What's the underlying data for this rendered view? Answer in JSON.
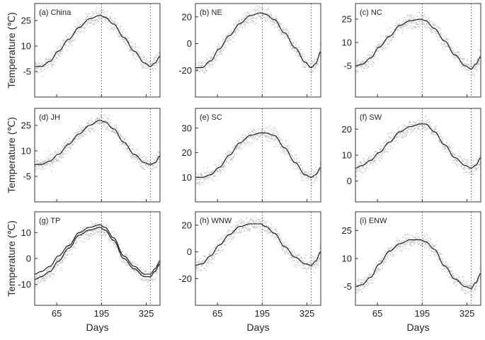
{
  "figure": {
    "ylabel": "Temperature (℃)",
    "xlabel": "Days"
  },
  "chart_data": [
    {
      "type": "line",
      "title": "(a) China",
      "x_ticks": [
        65,
        195,
        325
      ],
      "xlim": [
        1,
        365
      ],
      "yticks": [
        -5,
        10,
        25
      ],
      "ylim": [
        -20,
        35
      ],
      "vlines": [
        195,
        337
      ],
      "xlabel": "",
      "ylabel": "Temperature (℃)",
      "series": [
        {
          "x": [
            1,
            20,
            45,
            70,
            100,
            130,
            160,
            190,
            205,
            230,
            260,
            290,
            320,
            337,
            350,
            365
          ],
          "values": [
            -2,
            -2,
            1,
            7,
            14,
            21,
            26,
            28,
            27,
            23,
            15,
            7,
            0,
            -2,
            0,
            4
          ]
        }
      ]
    },
    {
      "type": "line",
      "title": "(b) NE",
      "x_ticks": [
        65,
        195,
        325
      ],
      "xlim": [
        1,
        365
      ],
      "yticks": [
        -20,
        0,
        20
      ],
      "ylim": [
        -40,
        30
      ],
      "vlines": [
        195,
        337
      ],
      "xlabel": "",
      "ylabel": "",
      "series": [
        {
          "x": [
            1,
            20,
            45,
            70,
            100,
            130,
            160,
            190,
            205,
            230,
            260,
            290,
            320,
            337,
            350,
            365
          ],
          "values": [
            -18,
            -18,
            -13,
            -4,
            6,
            15,
            21,
            23,
            22,
            18,
            8,
            -3,
            -14,
            -18,
            -15,
            -6
          ]
        }
      ]
    },
    {
      "type": "line",
      "title": "(c) NC",
      "x_ticks": [
        65,
        195,
        325
      ],
      "xlim": [
        1,
        365
      ],
      "yticks": [
        -5,
        10,
        25
      ],
      "ylim": [
        -25,
        35
      ],
      "vlines": [
        195,
        337
      ],
      "xlabel": "",
      "ylabel": "",
      "series": [
        {
          "x": [
            1,
            20,
            45,
            70,
            100,
            130,
            160,
            190,
            205,
            230,
            260,
            290,
            320,
            337,
            350,
            365
          ],
          "values": [
            -5,
            -4,
            0,
            7,
            14,
            21,
            24,
            25,
            24,
            19,
            11,
            2,
            -5,
            -7,
            -4,
            1
          ]
        }
      ]
    },
    {
      "type": "line",
      "title": "(d) JH",
      "x_ticks": [
        65,
        195,
        325
      ],
      "xlim": [
        1,
        365
      ],
      "yticks": [
        -5,
        10,
        25
      ],
      "ylim": [
        -20,
        35
      ],
      "vlines": [
        195,
        337
      ],
      "xlabel": "",
      "ylabel": "Temperature (℃)",
      "series": [
        {
          "x": [
            1,
            20,
            45,
            70,
            100,
            130,
            160,
            190,
            205,
            230,
            260,
            290,
            320,
            337,
            350,
            365
          ],
          "values": [
            2,
            2,
            4,
            8,
            14,
            20,
            25,
            28,
            27,
            23,
            15,
            8,
            3,
            2,
            3,
            7
          ]
        }
      ]
    },
    {
      "type": "line",
      "title": "(e) SC",
      "x_ticks": [
        65,
        195,
        325
      ],
      "xlim": [
        1,
        365
      ],
      "yticks": [
        10,
        20,
        30
      ],
      "ylim": [
        0,
        38
      ],
      "vlines": [
        195,
        337
      ],
      "xlabel": "",
      "ylabel": "",
      "series": [
        {
          "x": [
            1,
            20,
            45,
            70,
            100,
            130,
            160,
            190,
            205,
            230,
            260,
            290,
            320,
            337,
            350,
            365
          ],
          "values": [
            10,
            10,
            11,
            14,
            19,
            24,
            27,
            28,
            28,
            27,
            22,
            16,
            11,
            10,
            11,
            14
          ]
        }
      ]
    },
    {
      "type": "line",
      "title": "(f) SW",
      "x_ticks": [
        65,
        195,
        325
      ],
      "xlim": [
        1,
        365
      ],
      "yticks": [
        0,
        10,
        20
      ],
      "ylim": [
        -8,
        28
      ],
      "vlines": [
        195,
        337
      ],
      "xlabel": "",
      "ylabel": "",
      "series": [
        {
          "x": [
            1,
            20,
            45,
            70,
            100,
            130,
            160,
            190,
            205,
            230,
            260,
            290,
            320,
            337,
            350,
            365
          ],
          "values": [
            5,
            6,
            8,
            11,
            15,
            19,
            21,
            22,
            22,
            19,
            14,
            9,
            6,
            5,
            6,
            9
          ]
        }
      ]
    },
    {
      "type": "line",
      "title": "(g) TP",
      "x_ticks": [
        65,
        195,
        325
      ],
      "xlim": [
        1,
        365
      ],
      "yticks": [
        -10,
        0,
        10
      ],
      "ylim": [
        -18,
        18
      ],
      "vlines": [
        195,
        337
      ],
      "xlabel": "Days",
      "ylabel": "Temperature (℃)",
      "series": [
        {
          "x": [
            1,
            20,
            45,
            70,
            100,
            130,
            160,
            190,
            205,
            230,
            260,
            290,
            320,
            337,
            350,
            365
          ],
          "values": [
            -8,
            -7,
            -5,
            -1,
            4,
            9,
            11,
            12,
            11,
            7,
            0,
            -4,
            -7,
            -7,
            -5,
            -2
          ]
        },
        {
          "x": [
            1,
            20,
            45,
            70,
            100,
            130,
            160,
            190,
            205,
            230,
            260,
            290,
            320,
            337,
            350,
            365
          ],
          "values": [
            -6,
            -5,
            -3,
            1,
            5,
            10,
            12,
            13,
            12,
            8,
            1,
            -3,
            -6,
            -6,
            -4,
            -1
          ]
        }
      ]
    },
    {
      "type": "line",
      "title": "(h) WNW",
      "x_ticks": [
        65,
        195,
        325
      ],
      "xlim": [
        1,
        365
      ],
      "yticks": [
        -20,
        0,
        20
      ],
      "ylim": [
        -40,
        30
      ],
      "vlines": [
        195,
        337
      ],
      "xlabel": "Days",
      "ylabel": "",
      "series": [
        {
          "x": [
            1,
            20,
            45,
            70,
            100,
            130,
            160,
            190,
            205,
            230,
            260,
            290,
            320,
            337,
            350,
            365
          ],
          "values": [
            -10,
            -9,
            -3,
            5,
            13,
            19,
            21,
            21,
            19,
            14,
            4,
            -4,
            -9,
            -10,
            -7,
            0
          ]
        }
      ]
    },
    {
      "type": "line",
      "title": "(i) ENW",
      "x_ticks": [
        65,
        195,
        325
      ],
      "xlim": [
        1,
        365
      ],
      "yticks": [
        -5,
        10,
        25
      ],
      "ylim": [
        -15,
        35
      ],
      "vlines": [
        195,
        337
      ],
      "xlabel": "Days",
      "ylabel": "",
      "series": [
        {
          "x": [
            1,
            20,
            45,
            70,
            100,
            130,
            160,
            190,
            205,
            230,
            260,
            290,
            320,
            337,
            350,
            365
          ],
          "values": [
            -5,
            -4,
            0,
            7,
            14,
            18,
            20,
            20,
            19,
            15,
            6,
            -1,
            -5,
            -6,
            -3,
            2
          ]
        }
      ]
    }
  ]
}
